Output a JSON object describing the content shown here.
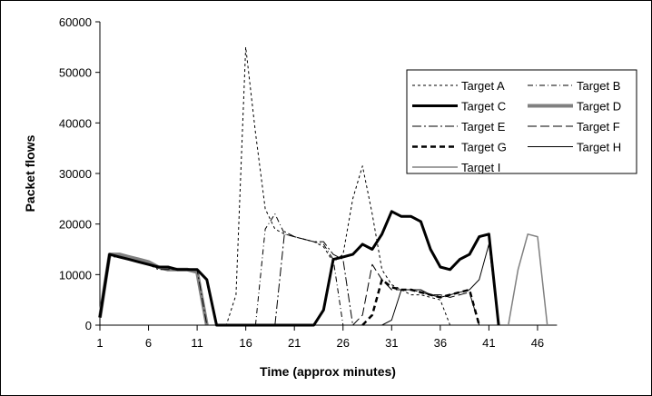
{
  "chart_data": {
    "type": "line",
    "title": "",
    "xlabel": "Time (approx minutes)",
    "ylabel": "Packet flows",
    "xlim": [
      1,
      48
    ],
    "ylim": [
      0,
      60000
    ],
    "x_ticks": [
      "1",
      "6",
      "11",
      "16",
      "21",
      "26",
      "31",
      "36",
      "41",
      "46"
    ],
    "y_ticks": [
      "0",
      "10000",
      "20000",
      "30000",
      "40000",
      "50000",
      "60000"
    ],
    "grid": false,
    "legend_position": "top-right",
    "x": [
      1,
      2,
      3,
      4,
      5,
      6,
      7,
      8,
      9,
      10,
      11,
      12,
      13,
      14,
      15,
      16,
      17,
      18,
      19,
      20,
      21,
      22,
      23,
      24,
      25,
      26,
      27,
      28,
      29,
      30,
      31,
      32,
      33,
      34,
      35,
      36,
      37,
      38,
      39,
      40,
      41,
      42,
      43,
      44,
      45,
      46,
      47
    ],
    "series": [
      {
        "name": "Target A",
        "style": "short-dash",
        "color": "#000000",
        "values": [
          0,
          0,
          0,
          0,
          0,
          0,
          0,
          0,
          0,
          0,
          0,
          0,
          0,
          0,
          6000,
          55000,
          38000,
          23000,
          19000,
          18000,
          17500,
          17000,
          16500,
          15500,
          12500,
          14000,
          25000,
          31500,
          22000,
          11000,
          8000,
          7000,
          6000,
          6000,
          5500,
          5000,
          0,
          null,
          null,
          null,
          null,
          null,
          null,
          null,
          null,
          null,
          null
        ]
      },
      {
        "name": "Target B",
        "style": "dash-dot",
        "color": "#000000",
        "values": [
          null,
          null,
          null,
          null,
          null,
          null,
          null,
          null,
          null,
          null,
          null,
          null,
          null,
          null,
          null,
          null,
          0,
          19000,
          22000,
          18000,
          17500,
          17000,
          16500,
          16000,
          13000,
          0,
          null,
          null,
          null,
          null,
          null,
          null,
          null,
          null,
          null,
          null,
          null,
          null,
          null,
          null,
          null,
          null,
          null,
          null,
          null,
          null,
          null
        ]
      },
      {
        "name": "Target C",
        "style": "thick-solid",
        "color": "#000000",
        "values": [
          1500,
          14000,
          13500,
          13000,
          12500,
          12000,
          11500,
          11500,
          11000,
          11000,
          11000,
          9000,
          0,
          0,
          0,
          0,
          0,
          0,
          0,
          0,
          0,
          0,
          0,
          3000,
          13000,
          13500,
          14000,
          16000,
          15000,
          18000,
          22500,
          21500,
          21500,
          20500,
          15000,
          11500,
          11000,
          13000,
          14000,
          17500,
          18000,
          0,
          null,
          null,
          null,
          null,
          null
        ]
      },
      {
        "name": "Target D",
        "style": "thick-gray",
        "color": "#808080",
        "values": [
          1500,
          14000,
          14000,
          13500,
          13000,
          12500,
          11500,
          11000,
          11000,
          11000,
          10500,
          0,
          null,
          null,
          null,
          null,
          null,
          null,
          null,
          null,
          null,
          null,
          null,
          null,
          null,
          null,
          null,
          null,
          null,
          null,
          null,
          null,
          null,
          null,
          null,
          null,
          null,
          null,
          null,
          null,
          null,
          null,
          null,
          null,
          null,
          null,
          null
        ]
      },
      {
        "name": "Target E",
        "style": "long-dash-dot",
        "color": "#000000",
        "values": [
          1500,
          13500,
          13500,
          13000,
          12500,
          12000,
          11000,
          11000,
          11000,
          11000,
          11000,
          0,
          null,
          null,
          null,
          null,
          null,
          null,
          0,
          18500,
          17500,
          17000,
          16500,
          16500,
          14000,
          13000,
          0,
          null,
          null,
          null,
          null,
          null,
          null,
          null,
          null,
          null,
          null,
          null,
          null,
          null,
          null,
          null,
          null,
          null,
          null,
          null,
          null
        ]
      },
      {
        "name": "Target F",
        "style": "long-dash",
        "color": "#000000",
        "values": [
          null,
          null,
          null,
          null,
          null,
          null,
          null,
          null,
          null,
          null,
          null,
          null,
          null,
          null,
          null,
          null,
          null,
          null,
          null,
          null,
          null,
          null,
          null,
          null,
          null,
          null,
          0,
          2000,
          12000,
          9000,
          7000,
          7000,
          7000,
          6500,
          6000,
          6000,
          5500,
          6000,
          6500,
          0,
          null,
          null,
          null,
          null,
          null,
          null,
          null
        ]
      },
      {
        "name": "Target G",
        "style": "thick-dash",
        "color": "#000000",
        "values": [
          null,
          null,
          null,
          null,
          null,
          null,
          null,
          null,
          null,
          null,
          null,
          null,
          null,
          null,
          null,
          null,
          null,
          null,
          null,
          null,
          null,
          null,
          null,
          null,
          null,
          null,
          null,
          0,
          2000,
          9000,
          7500,
          7000,
          7000,
          6500,
          6000,
          5500,
          6000,
          6500,
          7000,
          0,
          null,
          null,
          null,
          null,
          null,
          null,
          null
        ]
      },
      {
        "name": "Target H",
        "style": "thin-solid",
        "color": "#000000",
        "values": [
          0,
          0,
          0,
          0,
          0,
          0,
          0,
          0,
          0,
          0,
          0,
          0,
          0,
          0,
          0,
          0,
          0,
          0,
          0,
          0,
          0,
          0,
          0,
          0,
          0,
          0,
          0,
          0,
          0,
          0,
          1000,
          7000,
          7000,
          7000,
          6000,
          5500,
          6000,
          6500,
          7000,
          9000,
          16000,
          0,
          null,
          null,
          null,
          null,
          null
        ]
      },
      {
        "name": "Target I",
        "style": "thin-gray",
        "color": "#808080",
        "values": [
          null,
          null,
          null,
          null,
          null,
          null,
          null,
          null,
          null,
          null,
          null,
          null,
          null,
          null,
          null,
          null,
          null,
          null,
          null,
          null,
          null,
          null,
          null,
          null,
          null,
          null,
          null,
          null,
          null,
          null,
          null,
          null,
          null,
          null,
          null,
          null,
          null,
          null,
          null,
          null,
          null,
          null,
          0,
          11000,
          18000,
          17500,
          0
        ]
      }
    ]
  }
}
